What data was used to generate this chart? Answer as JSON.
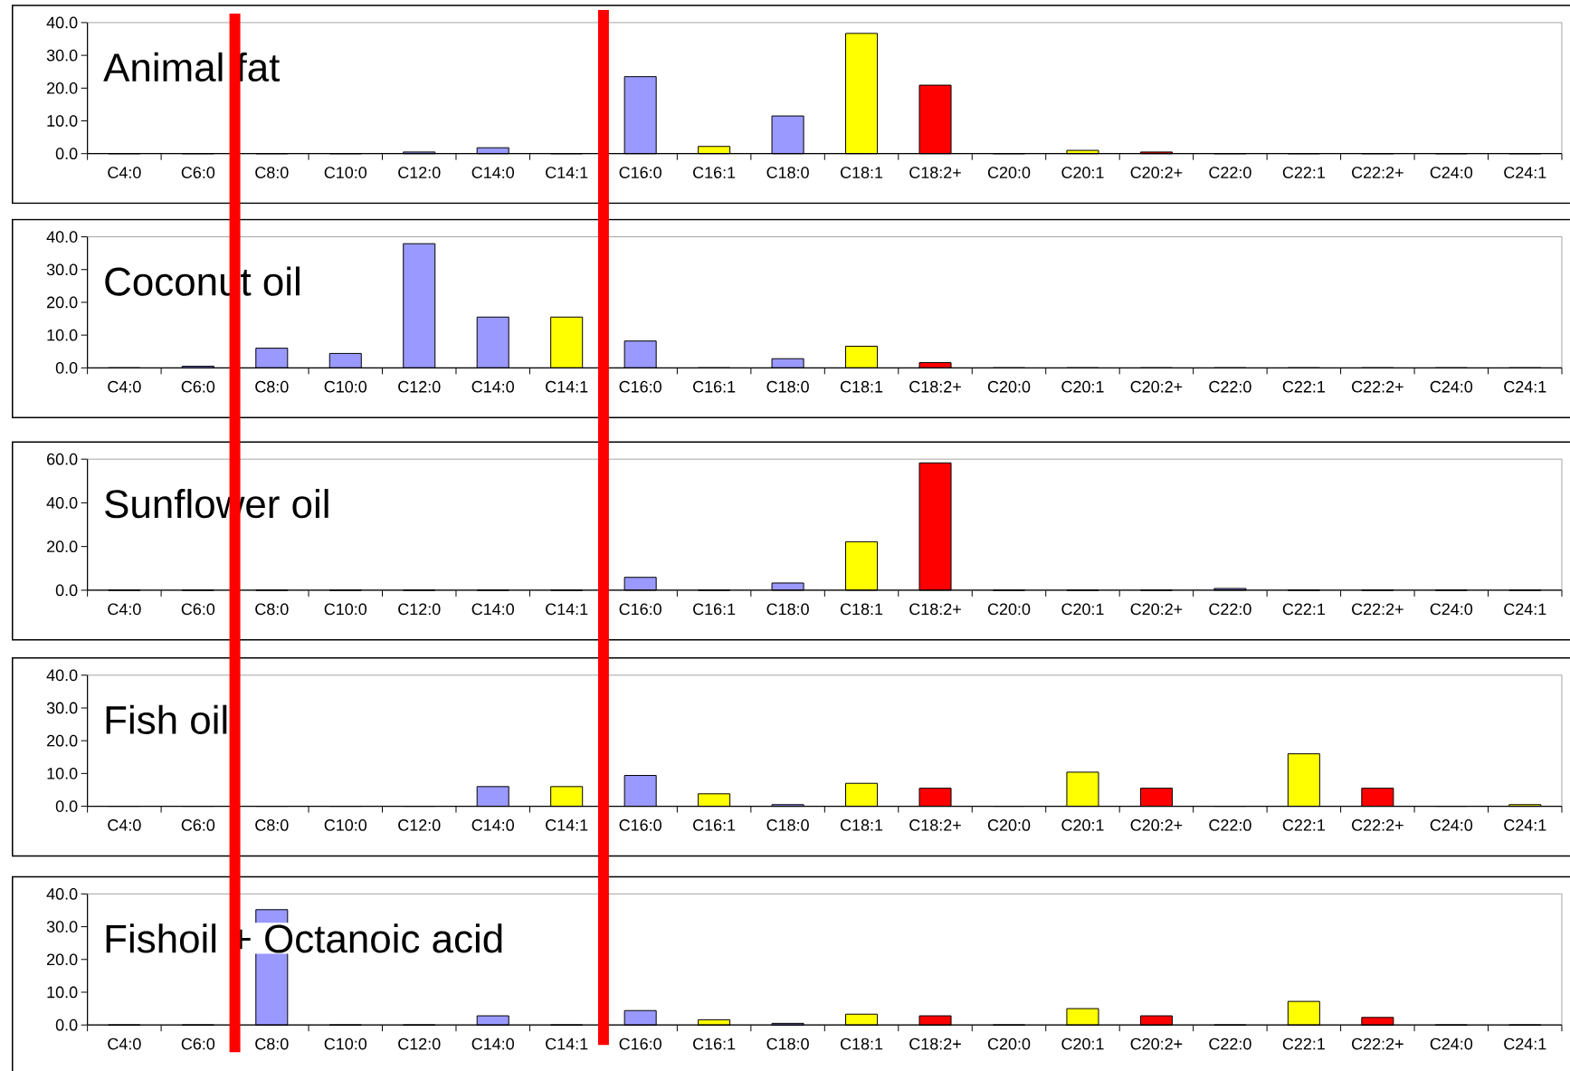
{
  "chart_data": [
    {
      "type": "bar",
      "title": "Animal fat",
      "categories": [
        "C4:0",
        "C6:0",
        "C8:0",
        "C10:0",
        "C12:0",
        "C14:0",
        "C14:1",
        "C16:0",
        "C16:1",
        "C18:0",
        "C18:1",
        "C18:2+",
        "C20:0",
        "C20:1",
        "C20:2+",
        "C22:0",
        "C22:1",
        "C22:2+",
        "C24:0",
        "C24:1"
      ],
      "values": [
        0,
        0,
        0,
        0,
        0.5,
        1.8,
        0,
        23.5,
        2.2,
        11.5,
        36.7,
        20.9,
        0,
        1.0,
        0.5,
        0,
        0,
        0,
        0,
        0
      ],
      "colors": [
        "#9999ff",
        "#9999ff",
        "#9999ff",
        "#9999ff",
        "#9999ff",
        "#9999ff",
        "#ffff00",
        "#9999ff",
        "#ffff00",
        "#9999ff",
        "#ffff00",
        "#ff0000",
        "#9999ff",
        "#ffff00",
        "#ff0000",
        "#9999ff",
        "#ffff00",
        "#ff0000",
        "#9999ff",
        "#ffff00"
      ],
      "ylim": [
        0,
        40
      ],
      "yticks": [
        {
          "value": 0,
          "label": "0.0"
        },
        {
          "value": 10,
          "label": "10.0"
        },
        {
          "value": 20,
          "label": "20.0"
        },
        {
          "value": 30,
          "label": "30.0"
        },
        {
          "value": 40,
          "label": "40.0"
        }
      ]
    },
    {
      "type": "bar",
      "title": "Coconut oil",
      "categories": [
        "C4:0",
        "C6:0",
        "C8:0",
        "C10:0",
        "C12:0",
        "C14:0",
        "C14:1",
        "C16:0",
        "C16:1",
        "C18:0",
        "C18:1",
        "C18:2+",
        "C20:0",
        "C20:1",
        "C20:2+",
        "C22:0",
        "C22:1",
        "C22:2+",
        "C24:0",
        "C24:1"
      ],
      "values": [
        0,
        0.5,
        6.0,
        4.4,
        37.9,
        15.5,
        15.5,
        8.2,
        0,
        2.8,
        6.6,
        1.6,
        0,
        0,
        0,
        0,
        0,
        0,
        0,
        0
      ],
      "colors": [
        "#9999ff",
        "#9999ff",
        "#9999ff",
        "#9999ff",
        "#9999ff",
        "#9999ff",
        "#ffff00",
        "#9999ff",
        "#ffff00",
        "#9999ff",
        "#ffff00",
        "#ff0000",
        "#9999ff",
        "#ffff00",
        "#ff0000",
        "#9999ff",
        "#ffff00",
        "#ff0000",
        "#9999ff",
        "#ffff00"
      ],
      "ylim": [
        0,
        40
      ],
      "yticks": [
        {
          "value": 0,
          "label": "0.0"
        },
        {
          "value": 10,
          "label": "10.0"
        },
        {
          "value": 20,
          "label": "20.0"
        },
        {
          "value": 30,
          "label": "30.0"
        },
        {
          "value": 40,
          "label": "40.0"
        }
      ]
    },
    {
      "type": "bar",
      "title": "Sunflower oil",
      "categories": [
        "C4:0",
        "C6:0",
        "C8:0",
        "C10:0",
        "C12:0",
        "C14:0",
        "C14:1",
        "C16:0",
        "C16:1",
        "C18:0",
        "C18:1",
        "C18:2+",
        "C20:0",
        "C20:1",
        "C20:2+",
        "C22:0",
        "C22:1",
        "C22:2+",
        "C24:0",
        "C24:1"
      ],
      "values": [
        0,
        0,
        0,
        0,
        0,
        0,
        0,
        5.9,
        0,
        3.3,
        22.2,
        58.3,
        0,
        0,
        0,
        0.8,
        0,
        0,
        0,
        0
      ],
      "colors": [
        "#9999ff",
        "#9999ff",
        "#9999ff",
        "#9999ff",
        "#9999ff",
        "#9999ff",
        "#ffff00",
        "#9999ff",
        "#ffff00",
        "#9999ff",
        "#ffff00",
        "#ff0000",
        "#9999ff",
        "#ffff00",
        "#ff0000",
        "#9999ff",
        "#ffff00",
        "#ff0000",
        "#9999ff",
        "#ffff00"
      ],
      "ylim": [
        0,
        60
      ],
      "yticks": [
        {
          "value": 0,
          "label": "0.0"
        },
        {
          "value": 20,
          "label": "20.0"
        },
        {
          "value": 40,
          "label": "40.0"
        },
        {
          "value": 60,
          "label": "60.0"
        }
      ]
    },
    {
      "type": "bar",
      "title": "Fish oil",
      "categories": [
        "C4:0",
        "C6:0",
        "C8:0",
        "C10:0",
        "C12:0",
        "C14:0",
        "C14:1",
        "C16:0",
        "C16:1",
        "C18:0",
        "C18:1",
        "C18:2+",
        "C20:0",
        "C20:1",
        "C20:2+",
        "C22:0",
        "C22:1",
        "C22:2+",
        "C24:0",
        "C24:1"
      ],
      "values": [
        0,
        0,
        0,
        0,
        0,
        6.0,
        6.0,
        9.4,
        3.8,
        0.5,
        7.0,
        5.5,
        0,
        10.4,
        5.5,
        0,
        16.0,
        5.5,
        0,
        0.5
      ],
      "colors": [
        "#9999ff",
        "#9999ff",
        "#9999ff",
        "#9999ff",
        "#9999ff",
        "#9999ff",
        "#ffff00",
        "#9999ff",
        "#ffff00",
        "#9999ff",
        "#ffff00",
        "#ff0000",
        "#9999ff",
        "#ffff00",
        "#ff0000",
        "#9999ff",
        "#ffff00",
        "#ff0000",
        "#9999ff",
        "#ffff00"
      ],
      "ylim": [
        0,
        40
      ],
      "yticks": [
        {
          "value": 0,
          "label": "0.0"
        },
        {
          "value": 10,
          "label": "10.0"
        },
        {
          "value": 20,
          "label": "20.0"
        },
        {
          "value": 30,
          "label": "30.0"
        },
        {
          "value": 40,
          "label": "40.0"
        }
      ]
    },
    {
      "type": "bar",
      "title": "Fishoil + Octanoic acid",
      "categories": [
        "C4:0",
        "C6:0",
        "C8:0",
        "C10:0",
        "C12:0",
        "C14:0",
        "C14:1",
        "C16:0",
        "C16:1",
        "C18:0",
        "C18:1",
        "C18:2+",
        "C20:0",
        "C20:1",
        "C20:2+",
        "C22:0",
        "C22:1",
        "C22:2+",
        "C24:0",
        "C24:1"
      ],
      "values": [
        0,
        0,
        35.2,
        0,
        0,
        2.8,
        0,
        4.4,
        1.6,
        0.5,
        3.3,
        2.8,
        0,
        5.0,
        2.8,
        0,
        7.2,
        2.3,
        0,
        0
      ],
      "colors": [
        "#9999ff",
        "#9999ff",
        "#9999ff",
        "#9999ff",
        "#9999ff",
        "#9999ff",
        "#ffff00",
        "#9999ff",
        "#ffff00",
        "#9999ff",
        "#ffff00",
        "#ff0000",
        "#9999ff",
        "#ffff00",
        "#ff0000",
        "#9999ff",
        "#ffff00",
        "#ff0000",
        "#9999ff",
        "#ffff00"
      ],
      "ylim": [
        0,
        40
      ],
      "yticks": [
        {
          "value": 0,
          "label": "0.0"
        },
        {
          "value": 10,
          "label": "10.0"
        },
        {
          "value": 20,
          "label": "20.0"
        },
        {
          "value": 30,
          "label": "30.0"
        },
        {
          "value": 40,
          "label": "40.0"
        }
      ]
    }
  ]
}
